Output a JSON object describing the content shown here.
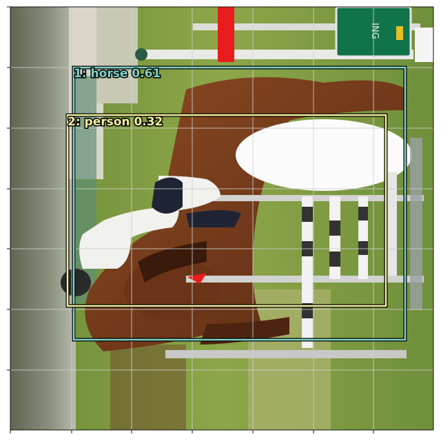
{
  "detections": [
    {
      "label": "1: horse 0.61",
      "color": "#7fd3c8"
    },
    {
      "label": "2: person 0.32",
      "color": "#f4f0a0"
    }
  ],
  "palette": {
    "sky_bg": "#c9c4b8",
    "grass": "#6d8f3a",
    "grass_light": "#9fb257",
    "horse": "#7a3a1c",
    "horse_dark": "#4d2410",
    "rider_white": "#f1f1ee",
    "rider_dark": "#1f2333",
    "rail_white": "#f4f4f2",
    "rail_red": "#e81c1c",
    "sign_green": "#11734a",
    "trees": "#5a6a4a",
    "gridline": "#cfcfcf"
  },
  "scene_elements": [
    "trees-left",
    "grass-field",
    "horse",
    "rider",
    "jump-poles",
    "white-oval-panel",
    "green-sign",
    "red-post"
  ]
}
